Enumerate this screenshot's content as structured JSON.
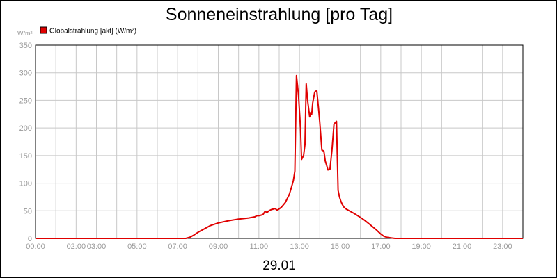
{
  "chart_data": {
    "type": "line",
    "title": "Sonneneinstrahlung [pro Tag]",
    "ylabel": "W/m²",
    "xlabel": "29.01",
    "ylim": [
      0,
      350
    ],
    "xlim": [
      0,
      24
    ],
    "y_ticks": [
      0,
      50,
      100,
      150,
      200,
      250,
      300,
      350
    ],
    "x_tick_labels": [
      {
        "x": 0,
        "label": "00:00"
      },
      {
        "x": 2,
        "label": "02:00"
      },
      {
        "x": 3,
        "label": "03:00"
      },
      {
        "x": 5,
        "label": "05:00"
      },
      {
        "x": 7,
        "label": "07:00"
      },
      {
        "x": 9,
        "label": "09:00"
      },
      {
        "x": 11,
        "label": "11:00"
      },
      {
        "x": 13,
        "label": "13:00"
      },
      {
        "x": 15,
        "label": "15:00"
      },
      {
        "x": 17,
        "label": "17:00"
      },
      {
        "x": 19,
        "label": "19:00"
      },
      {
        "x": 21,
        "label": "21:00"
      },
      {
        "x": 23,
        "label": "23:00"
      }
    ],
    "grid": true,
    "legend_position": "top-left",
    "series": [
      {
        "name": "Globalstrahlung [akt] (W/m²)",
        "color": "#e00000",
        "x": [
          0,
          7.4,
          7.6,
          7.8,
          8.0,
          8.3,
          8.6,
          9.0,
          9.5,
          10.0,
          10.5,
          10.8,
          10.9,
          11.0,
          11.1,
          11.2,
          11.3,
          11.4,
          11.5,
          11.6,
          11.7,
          11.8,
          11.9,
          12.1,
          12.3,
          12.5,
          12.6,
          12.7,
          12.77,
          12.85,
          12.95,
          13.05,
          13.1,
          13.2,
          13.27,
          13.33,
          13.4,
          13.5,
          13.55,
          13.6,
          13.65,
          13.75,
          13.85,
          13.95,
          14.0,
          14.1,
          14.2,
          14.27,
          14.33,
          14.4,
          14.5,
          14.6,
          14.7,
          14.77,
          14.82,
          14.9,
          14.97,
          15.03,
          15.1,
          15.2,
          15.3,
          15.5,
          15.7,
          16.0,
          16.2,
          16.5,
          16.8,
          17.0,
          17.15,
          17.3,
          17.5,
          17.7,
          24
        ],
        "values": [
          0,
          0,
          2,
          6,
          11,
          17,
          23,
          28,
          32,
          35,
          37,
          39,
          41,
          41,
          42,
          43,
          49,
          47,
          50,
          52,
          53,
          54,
          51,
          56,
          65,
          80,
          92,
          105,
          122,
          295,
          260,
          200,
          143,
          150,
          170,
          280,
          250,
          220,
          228,
          225,
          245,
          265,
          268,
          230,
          210,
          160,
          158,
          140,
          133,
          124,
          125,
          160,
          207,
          210,
          212,
          87,
          75,
          68,
          62,
          56,
          53,
          49,
          45,
          38,
          33,
          24,
          15,
          8,
          4,
          2,
          1,
          0,
          0
        ]
      }
    ]
  }
}
